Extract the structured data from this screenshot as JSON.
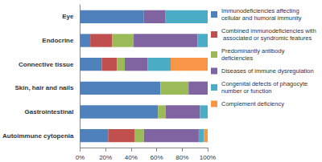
{
  "chart_data": {
    "type": "bar",
    "orientation": "horizontal",
    "stacked": true,
    "grid": false,
    "legend": "right",
    "categories": [
      "Eye",
      "Endocrine",
      "Connective tissue",
      "Skin, hair and nails",
      "Gastrointestinal",
      "Autoimmune cytopenia"
    ],
    "xlim": [
      0,
      100
    ],
    "xticks": [
      {
        "value": 0,
        "label": "0%"
      },
      {
        "value": 20,
        "label": "20%"
      },
      {
        "value": 40,
        "label": "40%"
      },
      {
        "value": 60,
        "label": "60%"
      },
      {
        "value": 80,
        "label": "80%"
      },
      {
        "value": 100,
        "label": "100%"
      }
    ],
    "series": [
      {
        "name": "Immunodeficiencies affecting cellular and humoral immunity",
        "color": "#4f81bd",
        "values": [
          50,
          8,
          17,
          63,
          61,
          22
        ]
      },
      {
        "name": "Combined immunodeficiencies with associated or syndromic features",
        "color": "#c0504d",
        "values": [
          0,
          17,
          12,
          0,
          0,
          21
        ]
      },
      {
        "name": "Predominantly antibody deficiencies",
        "color": "#9bbb59",
        "values": [
          0,
          17,
          6,
          22,
          6,
          7
        ]
      },
      {
        "name": "Diseases of immune dysregulation",
        "color": "#8064a2",
        "values": [
          17,
          50,
          18,
          15,
          27,
          43
        ]
      },
      {
        "name": "Congenital defects of phagocyte number or function",
        "color": "#4bacc6",
        "values": [
          33,
          8,
          18,
          0,
          6,
          4
        ]
      },
      {
        "name": "Complement deficiency",
        "color": "#f79646",
        "values": [
          0,
          0,
          29,
          0,
          0,
          3
        ]
      }
    ]
  }
}
